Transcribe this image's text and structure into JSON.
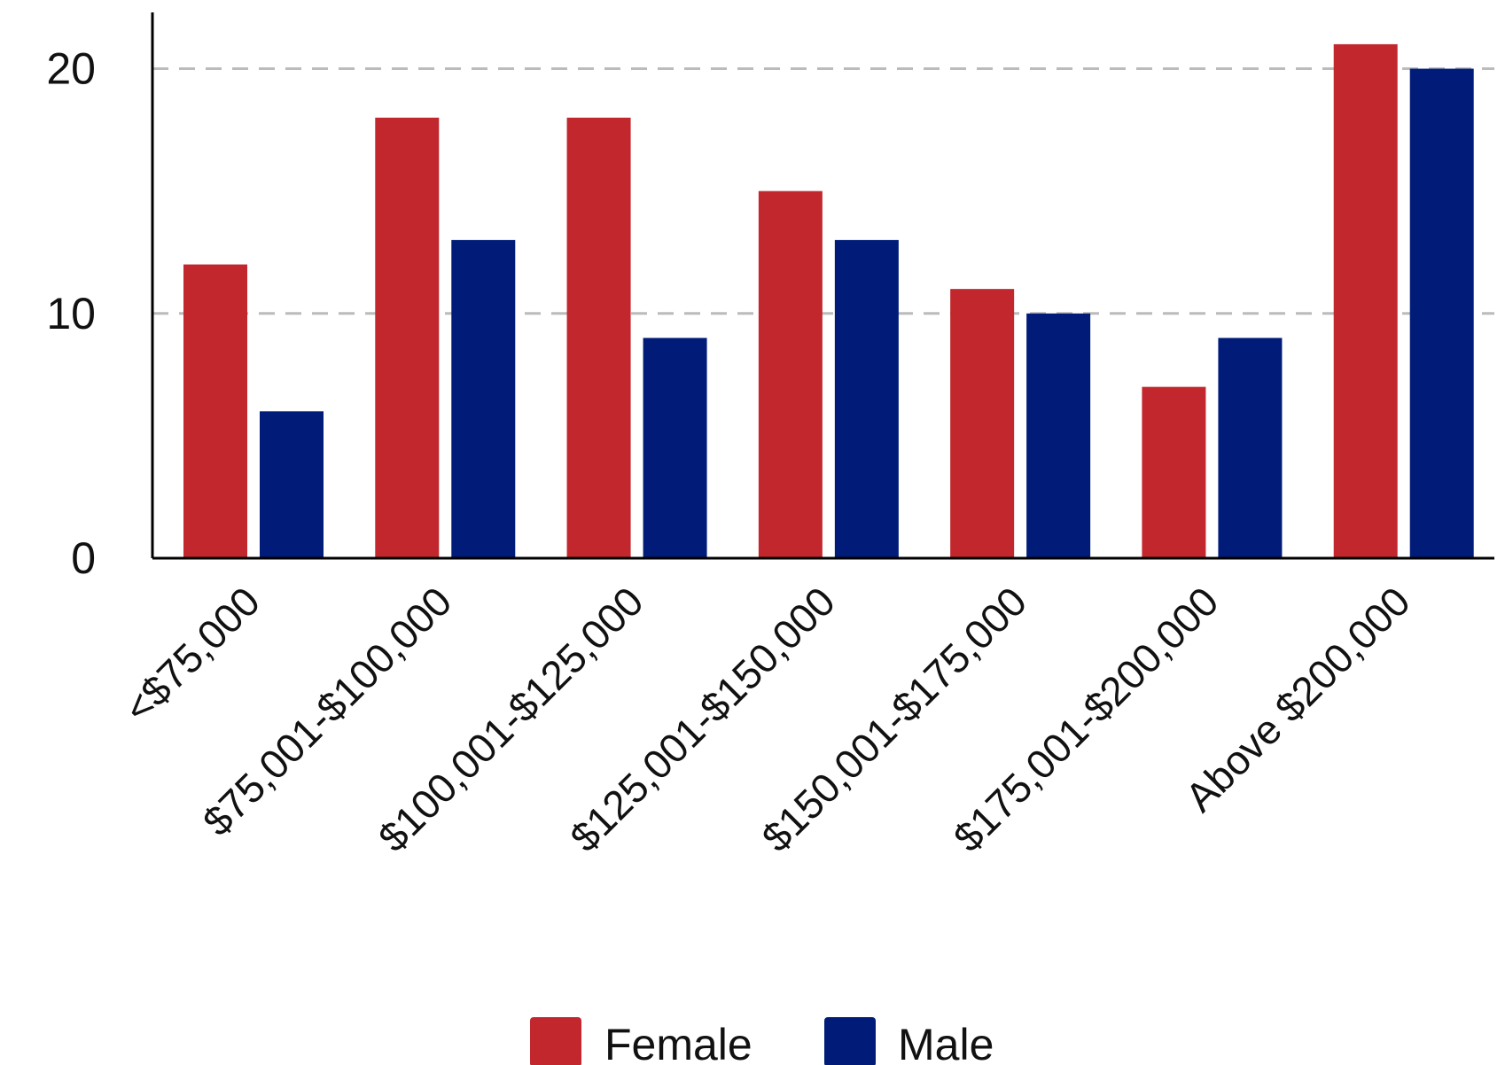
{
  "chart_data": {
    "type": "bar",
    "title": "",
    "xlabel": "",
    "ylabel": "",
    "categories": [
      "<$75,000",
      "$75,001-$100,000",
      "$100,001-$125,000",
      "$125,001-$150,000",
      "$150,001-$175,000",
      "$175,001-$200,000",
      "Above $200,000"
    ],
    "series": [
      {
        "name": "Female",
        "color": "#c1272d",
        "values": [
          12,
          18,
          18,
          15,
          11,
          7,
          21
        ]
      },
      {
        "name": "Male",
        "color": "#001c78",
        "values": [
          6,
          13,
          9,
          13,
          10,
          9,
          20
        ]
      }
    ],
    "ylim": [
      0,
      22.3
    ],
    "yticks": [
      0,
      10,
      20
    ],
    "grid": {
      "horizontal": true,
      "style": "dashed",
      "color": "#bbbbbb"
    },
    "legend": {
      "position": "bottom"
    }
  }
}
